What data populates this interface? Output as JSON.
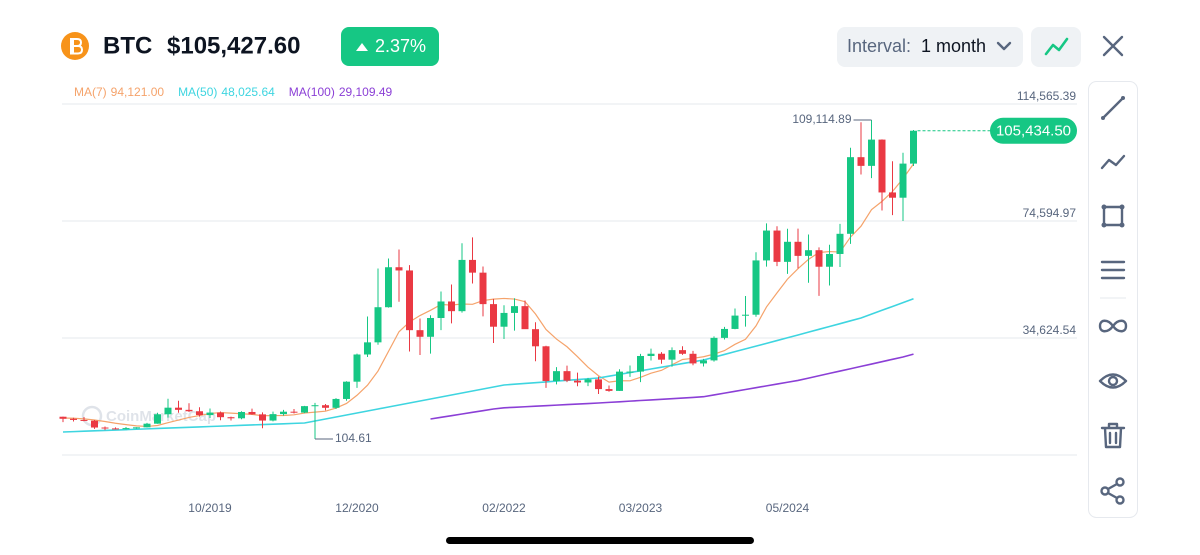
{
  "header": {
    "symbol": "BTC",
    "price": "$105,427.60",
    "change": "2.37%",
    "interval_label": "Interval:",
    "interval": "1 month",
    "watermark": "CoinMarketCap"
  },
  "chart_data": {
    "type": "candlestick",
    "categories": [
      null,
      null,
      null,
      null,
      null,
      null,
      null,
      null,
      null,
      null,
      null,
      null,
      null,
      null,
      "10/2019",
      null,
      null,
      null,
      null,
      null,
      null,
      null,
      null,
      null,
      null,
      null,
      null,
      null,
      "12/2020",
      null,
      null,
      null,
      null,
      null,
      null,
      null,
      null,
      null,
      null,
      null,
      null,
      null,
      "02/2022",
      null,
      null,
      null,
      null,
      null,
      null,
      null,
      null,
      null,
      null,
      null,
      null,
      "03/2023",
      null,
      null,
      null,
      null,
      null,
      null,
      null,
      null,
      null,
      null,
      null,
      null,
      null,
      "05/2024",
      null,
      null,
      null,
      null,
      null,
      null,
      null,
      null,
      null,
      null,
      null,
      null
    ],
    "open": [
      7730,
      7030,
      6630,
      6370,
      4040,
      3740,
      3460,
      3850,
      4100,
      5350,
      8570,
      10820,
      10080,
      9600,
      8290,
      9150,
      7570,
      7190,
      9350,
      8540,
      6420,
      8620,
      9450,
      9140,
      11350,
      11660,
      10780,
      13800,
      19700,
      28990,
      33140,
      45140,
      58800,
      57700,
      37300,
      35040,
      41460,
      47100,
      43790,
      61300,
      56950,
      46200,
      38480,
      43190,
      45510,
      37640,
      31790,
      19930,
      23300,
      20050,
      19430,
      20490,
      17170,
      16550,
      23140,
      23150,
      28480,
      29250,
      27220,
      30480,
      29230,
      25940,
      26970,
      34670,
      37720,
      42280,
      42580,
      61130,
      71330,
      60640,
      67490,
      62680,
      64620,
      58970,
      63330,
      70220,
      96400,
      93430,
      102400,
      84350,
      82550,
      94200
    ],
    "high": [
      7760,
      7400,
      7650,
      6600,
      4400,
      4100,
      4200,
      4150,
      5640,
      9100,
      13880,
      13200,
      12330,
      10950,
      10540,
      9520,
      7750,
      9580,
      10500,
      9200,
      9460,
      10080,
      10380,
      11440,
      12470,
      12090,
      14100,
      19860,
      29300,
      41950,
      58350,
      61780,
      64850,
      59500,
      41300,
      42400,
      50500,
      52920,
      67000,
      69000,
      59050,
      47990,
      45800,
      48200,
      47450,
      40000,
      31990,
      24670,
      25200,
      22800,
      20990,
      21450,
      18390,
      23950,
      25250,
      29190,
      31000,
      29820,
      31430,
      31800,
      30230,
      27480,
      35200,
      38430,
      44700,
      48970,
      63900,
      73800,
      72800,
      71950,
      71980,
      70000,
      65600,
      66500,
      73600,
      99600,
      108350,
      109114.89,
      102500,
      95000,
      97900,
      105700
    ],
    "low": [
      5880,
      6100,
      6200,
      3600,
      3150,
      3400,
      3400,
      3680,
      4070,
      5330,
      7440,
      9070,
      9330,
      7750,
      7300,
      6520,
      6430,
      6850,
      8400,
      3800,
      6150,
      8100,
      8830,
      8970,
      104.61,
      9880,
      10370,
      13200,
      17600,
      28130,
      32300,
      45000,
      47000,
      30000,
      28800,
      29300,
      37330,
      39600,
      43300,
      53250,
      42000,
      32900,
      34300,
      37150,
      37700,
      26700,
      17570,
      18780,
      19540,
      18150,
      18190,
      15480,
      16260,
      16500,
      21350,
      19550,
      26950,
      25810,
      24800,
      28860,
      25300,
      24900,
      26560,
      34100,
      37620,
      38500,
      41880,
      59000,
      59200,
      56550,
      58400,
      53500,
      49000,
      52550,
      58900,
      66800,
      90500,
      89260,
      78200,
      76600,
      74600,
      93400
    ],
    "close": [
      7030,
      6630,
      6370,
      4040,
      3740,
      3460,
      3850,
      4100,
      5350,
      8570,
      10820,
      10080,
      9600,
      8290,
      9150,
      7570,
      7190,
      9350,
      8540,
      6420,
      8620,
      9450,
      9140,
      11350,
      11660,
      10780,
      13800,
      19700,
      28990,
      33140,
      45140,
      58800,
      57700,
      37300,
      35040,
      41460,
      47100,
      43790,
      61300,
      56950,
      46200,
      38480,
      43190,
      45510,
      37640,
      31790,
      19930,
      23300,
      20050,
      19430,
      20490,
      17170,
      16550,
      23140,
      23150,
      28480,
      29250,
      27220,
      30480,
      29230,
      25940,
      26970,
      34670,
      37720,
      42280,
      42580,
      61130,
      71330,
      60640,
      67490,
      62680,
      64620,
      58970,
      63330,
      70220,
      96400,
      93430,
      102400,
      84350,
      82550,
      94200,
      105434.5
    ],
    "up_color": "#16c784",
    "down_color": "#ea3943",
    "series": [
      {
        "name": "MA(7)",
        "color": "#f5a36b",
        "value_label": "94,121.00",
        "values": [
          7300,
          7200,
          7000,
          6600,
          6100,
          5500,
          5020,
          4600,
          4420,
          4730,
          5700,
          6600,
          7480,
          8120,
          8840,
          9150,
          8960,
          8750,
          8530,
          8070,
          8120,
          8160,
          8390,
          8980,
          9310,
          9630,
          10690,
          12270,
          15060,
          18490,
          23320,
          30050,
          36750,
          40110,
          42300,
          44080,
          46080,
          45880,
          46240,
          46130,
          47410,
          47900,
          48140,
          47920,
          47040,
          42820,
          37530,
          34260,
          31630,
          28240,
          24660,
          21740,
          19560,
          20020,
          20000,
          21200,
          22600,
          23570,
          25470,
          27280,
          27680,
          28220,
          29110,
          30320,
          32470,
          34200,
          38760,
          45240,
          50050,
          54740,
          58300,
          61500,
          63840,
          64150,
          63990,
          69100,
          72810,
          78480,
          81300,
          84670,
          89080,
          94121
        ]
      },
      {
        "name": "MA(50)",
        "color": "#3ed5e0",
        "value_label": "48,025.64",
        "values": [
          2510,
          2640,
          2780,
          2910,
          3050,
          3180,
          3310,
          3450,
          3580,
          3720,
          3850,
          3980,
          4120,
          4250,
          4390,
          4520,
          4650,
          4790,
          4920,
          5060,
          5190,
          5320,
          5460,
          5590,
          6270,
          6960,
          7640,
          8320,
          9000,
          9690,
          10370,
          11060,
          11740,
          12420,
          13110,
          13790,
          14470,
          15160,
          15840,
          16520,
          17200,
          17890,
          18570,
          18840,
          19100,
          19370,
          19630,
          19900,
          20170,
          20430,
          20700,
          20960,
          21580,
          22190,
          22810,
          23420,
          24040,
          24650,
          25270,
          25880,
          26500,
          27110,
          28060,
          29010,
          29960,
          30910,
          31850,
          32800,
          33750,
          34700,
          35650,
          36620,
          37590,
          38550,
          39520,
          40490,
          41460,
          42770,
          44090,
          45400,
          46710,
          48025.64
        ]
      },
      {
        "name": "MA(100)",
        "color": "#8b3fd6",
        "value_label": "29,109.49",
        "values": [
          null,
          null,
          null,
          null,
          null,
          null,
          null,
          null,
          null,
          null,
          null,
          null,
          null,
          null,
          null,
          null,
          null,
          null,
          null,
          null,
          null,
          null,
          null,
          null,
          null,
          null,
          null,
          null,
          null,
          null,
          null,
          null,
          null,
          null,
          null,
          6950,
          7520,
          8090,
          8660,
          9230,
          9800,
          10370,
          10780,
          10960,
          11140,
          11330,
          11510,
          11690,
          11870,
          12060,
          12240,
          12420,
          12630,
          12840,
          13060,
          13270,
          13480,
          13690,
          13900,
          14110,
          14320,
          14560,
          15180,
          15800,
          16410,
          17030,
          17650,
          18270,
          18890,
          19500,
          20120,
          20920,
          21720,
          22530,
          23330,
          24130,
          24930,
          25730,
          26540,
          27340,
          28140,
          29109.49
        ]
      }
    ],
    "ylim": [
      -5346,
      114565.39
    ],
    "yticks": [
      {
        "value": 34624.54,
        "label": "34,624.54"
      },
      {
        "value": 74594.97,
        "label": "74,594.97"
      },
      {
        "value": 114565.39,
        "label": "114,565.39"
      }
    ],
    "grid": true,
    "high_note": {
      "value": 109114.89,
      "label": "109,114.89"
    },
    "low_note": 104.61,
    "price_tag": {
      "value": 105434.5,
      "label": "105,434.50"
    }
  }
}
